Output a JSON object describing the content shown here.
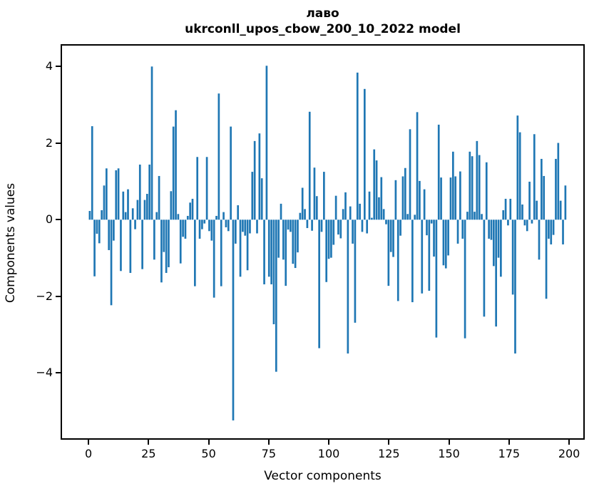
{
  "chart_data": {
    "type": "bar",
    "title": "лаво",
    "subtitle": "ukrconll_upos_cbow_200_10_2022 model",
    "xlabel": "Vector components",
    "ylabel": "Components values",
    "legend": null,
    "grid": false,
    "bar_color": "#1f77b4",
    "axis_color": "#000000",
    "background_color": "#ffffff",
    "xlim": [
      -11.6,
      206.5
    ],
    "ylim": [
      -5.75,
      4.58
    ],
    "bar_width_units": 0.8,
    "x_ticks": [
      0,
      25,
      50,
      75,
      100,
      125,
      150,
      175,
      200
    ],
    "x_tick_labels": [
      "0",
      "25",
      "50",
      "75",
      "100",
      "125",
      "150",
      "175",
      "200"
    ],
    "y_ticks": [
      4,
      2,
      0,
      -2,
      -4
    ],
    "y_tick_labels": [
      "4",
      "2",
      "0",
      "−2",
      "−4"
    ],
    "x": "component indices 0..199",
    "values": [
      0.23,
      2.46,
      -1.49,
      -0.37,
      -0.62,
      0.25,
      0.9,
      1.35,
      -0.8,
      -2.25,
      -0.55,
      1.3,
      1.35,
      -1.35,
      0.74,
      0.2,
      0.8,
      -1.4,
      0.3,
      -0.25,
      0.52,
      1.45,
      -1.3,
      0.52,
      0.68,
      1.45,
      4.03,
      -1.05,
      0.2,
      1.15,
      -1.65,
      -0.85,
      -1.4,
      -1.25,
      0.75,
      2.45,
      2.88,
      0.15,
      -1.15,
      -0.45,
      -0.5,
      0.1,
      0.45,
      0.55,
      -1.75,
      1.65,
      -0.5,
      -0.25,
      -0.1,
      1.65,
      -0.3,
      -0.55,
      -2.05,
      0.1,
      3.32,
      -1.75,
      0.2,
      -0.2,
      -0.3,
      2.45,
      -5.28,
      -0.63,
      0.38,
      -1.5,
      -0.32,
      -0.42,
      -1.33,
      -0.36,
      1.26,
      2.07,
      -0.36,
      2.27,
      1.09,
      -1.7,
      4.05,
      -1.5,
      -1.7,
      -2.75,
      -4.0,
      -1.0,
      0.42,
      -1.05,
      -1.74,
      -0.26,
      -0.32,
      -1.16,
      -1.27,
      -0.86,
      0.18,
      0.84,
      0.28,
      -0.22,
      2.84,
      -0.29,
      1.37,
      0.62,
      -3.38,
      -0.32,
      1.26,
      -1.64,
      -1.03,
      -1.0,
      -0.66,
      0.63,
      -0.39,
      -0.49,
      0.28,
      0.72,
      -3.52,
      0.35,
      -0.63,
      -2.71,
      3.87,
      0.42,
      -0.32,
      3.44,
      -0.36,
      0.74,
      0.05,
      1.85,
      1.56,
      0.59,
      1.12,
      0.28,
      -0.12,
      -1.74,
      -0.85,
      -0.98,
      1.04,
      -2.14,
      -0.42,
      1.14,
      1.36,
      0.15,
      2.38,
      -2.17,
      0.13,
      2.83,
      1.02,
      -1.94,
      0.8,
      -0.41,
      -1.87,
      -0.1,
      -0.97,
      -3.1,
      2.5,
      1.11,
      -1.2,
      -1.28,
      -0.94,
      1.11,
      1.79,
      1.14,
      -0.63,
      1.27,
      -0.5,
      -3.12,
      0.21,
      1.79,
      1.67,
      0.21,
      2.07,
      1.7,
      0.15,
      -2.55,
      1.51,
      -0.5,
      -0.53,
      -1.22,
      -2.81,
      -1.0,
      -1.5,
      0.25,
      0.55,
      -0.15,
      0.55,
      -1.97,
      -3.52,
      2.74,
      2.3,
      0.4,
      -0.15,
      -0.3,
      1.0,
      -0.1,
      2.25,
      0.5,
      -1.05,
      1.6,
      1.15,
      -2.08,
      -0.5,
      -0.65,
      -0.4,
      1.6,
      2.02,
      0.5,
      -0.65,
      0.9
    ]
  }
}
